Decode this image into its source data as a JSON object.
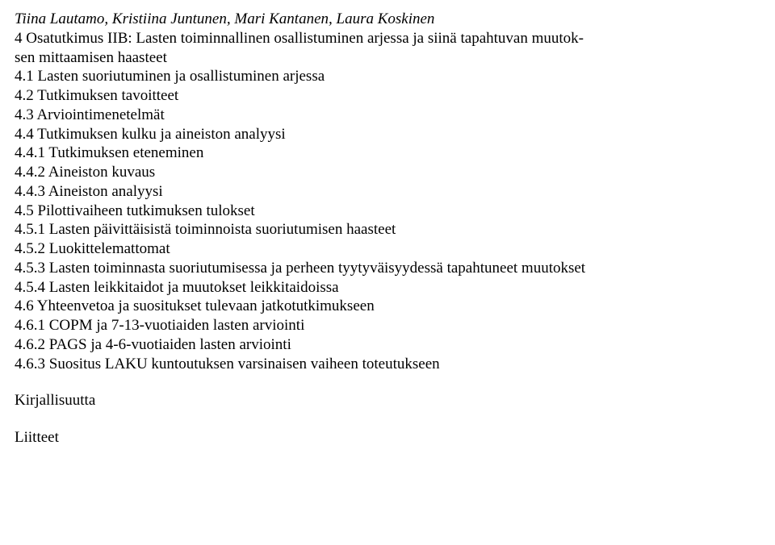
{
  "authors": "Tiina Lautamo, Kristiina Juntunen, Mari Kantanen, Laura Koskinen",
  "lines": [
    "4 Osatutkimus IIB: Lasten toiminnallinen osallistuminen arjessa ja siinä tapahtuvan muutok-",
    "sen mittaamisen haasteet",
    "4.1 Lasten suoriutuminen ja osallistuminen arjessa",
    "4.2 Tutkimuksen tavoitteet",
    "4.3 Arviointimenetelmät",
    "4.4 Tutkimuksen kulku ja aineiston analyysi",
    "4.4.1 Tutkimuksen eteneminen",
    "4.4.2 Aineiston kuvaus",
    "4.4.3 Aineiston analyysi",
    "4.5 Pilottivaiheen tutkimuksen tulokset",
    "4.5.1 Lasten päivittäisistä toiminnoista suoriutumisen haasteet",
    "4.5.2 Luokittelemattomat",
    "4.5.3 Lasten toiminnasta suoriutumisessa ja perheen tyytyväisyydessä tapahtuneet muutokset",
    "4.5.4 Lasten leikkitaidot ja muutokset leikkitaidoissa",
    "4.6 Yhteenvetoa ja suositukset tulevaan jatkotutkimukseen",
    "4.6.1 COPM ja 7-13-vuotiaiden lasten arviointi",
    "4.6.2 PAGS ja 4-6-vuotiaiden lasten arviointi",
    "4.6.3 Suositus LAKU kuntoutuksen varsinaisen vaiheen toteutukseen"
  ],
  "bibliography": "Kirjallisuutta",
  "appendices": "Liitteet"
}
